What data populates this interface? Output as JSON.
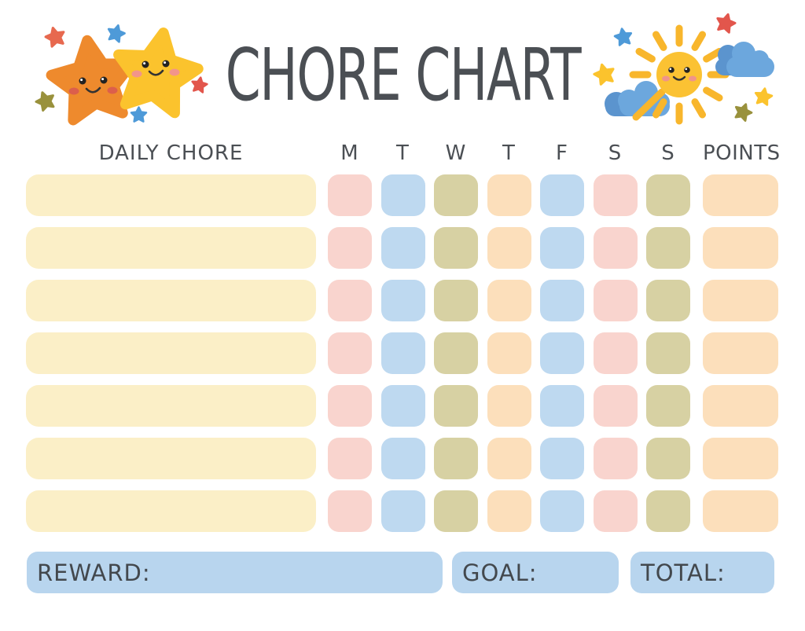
{
  "page": {
    "background": "#ffffff",
    "text_color": "#4b4f54"
  },
  "header": {
    "title": "CHORE CHART"
  },
  "columns": {
    "chore": "DAILY CHORE",
    "days": [
      "M",
      "T",
      "W",
      "T",
      "F",
      "S",
      "S"
    ],
    "points": "POINTS"
  },
  "grid": {
    "rows": 7,
    "chore_cell_color": "#fbefc7",
    "day_cell_colors": [
      "#f9d4ce",
      "#bed9f0",
      "#d7d1a3",
      "#fcdfbb",
      "#bed9f0",
      "#f9d4ce",
      "#d7d1a3"
    ],
    "points_cell_color": "#fcdfbb"
  },
  "footer": {
    "reward": "REWARD:",
    "goal": "GOAL:",
    "total": "TOTAL:",
    "box_color": "#b8d5ee"
  },
  "decoration_colors": {
    "orange_star": "#ee8a2d",
    "yellow_star": "#fbc32d",
    "sun_body": "#fbc233",
    "sun_ray": "#f8b62c",
    "cloud": "#6ca7dd",
    "cloud_shadow": "#5b94ce",
    "small_star_red": "#e2564c",
    "small_star_coral": "#e7694f",
    "small_star_blue": "#4e9ad8",
    "small_star_olive": "#99913c"
  }
}
